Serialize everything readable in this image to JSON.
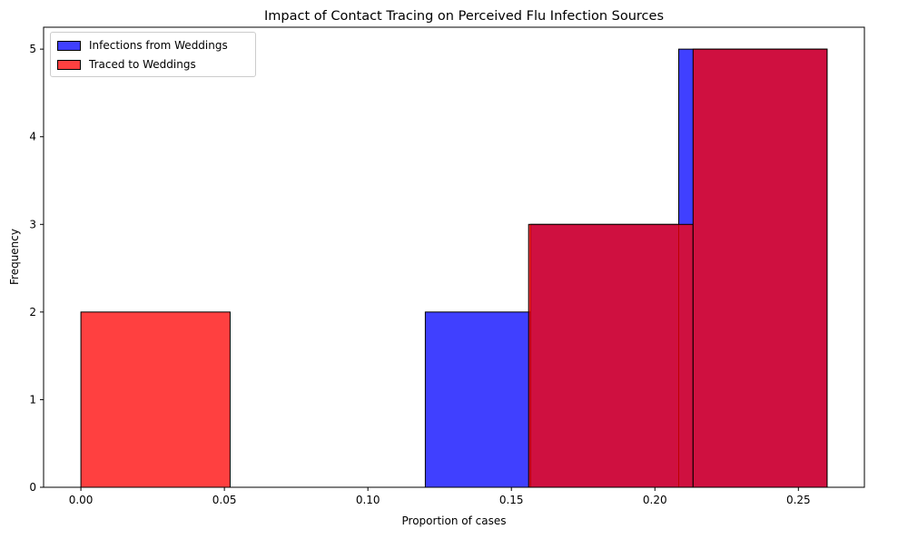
{
  "chart_data": {
    "type": "bar",
    "title": "Impact of Contact Tracing on Perceived Flu Infection Sources",
    "xlabel": "Proportion of cases",
    "ylabel": "Frequency",
    "xlim": [
      -0.013,
      0.273
    ],
    "ylim": [
      0,
      5.25
    ],
    "xticks": [
      "0.00",
      "0.05",
      "0.10",
      "0.15",
      "0.20",
      "0.25"
    ],
    "yticks": [
      "0",
      "1",
      "2",
      "3",
      "4",
      "5"
    ],
    "legend_position": "top-left",
    "grid": false,
    "series": [
      {
        "name": "Infections from Weddings",
        "color": "#0000ff",
        "bins": [
          {
            "x0": 0.12,
            "x1": 0.1567,
            "count": 2
          },
          {
            "x0": 0.1567,
            "x1": 0.2083,
            "count": 3
          },
          {
            "x0": 0.2083,
            "x1": 0.26,
            "count": 5
          }
        ]
      },
      {
        "name": "Traced to Weddings",
        "color": "#ff0000",
        "bins": [
          {
            "x0": 0.0,
            "x1": 0.052,
            "count": 2
          },
          {
            "x0": 0.052,
            "x1": 0.104,
            "count": 0
          },
          {
            "x0": 0.104,
            "x1": 0.156,
            "count": 0
          },
          {
            "x0": 0.156,
            "x1": 0.2133,
            "count": 3
          },
          {
            "x0": 0.2133,
            "x1": 0.26,
            "count": 5
          }
        ]
      }
    ]
  }
}
